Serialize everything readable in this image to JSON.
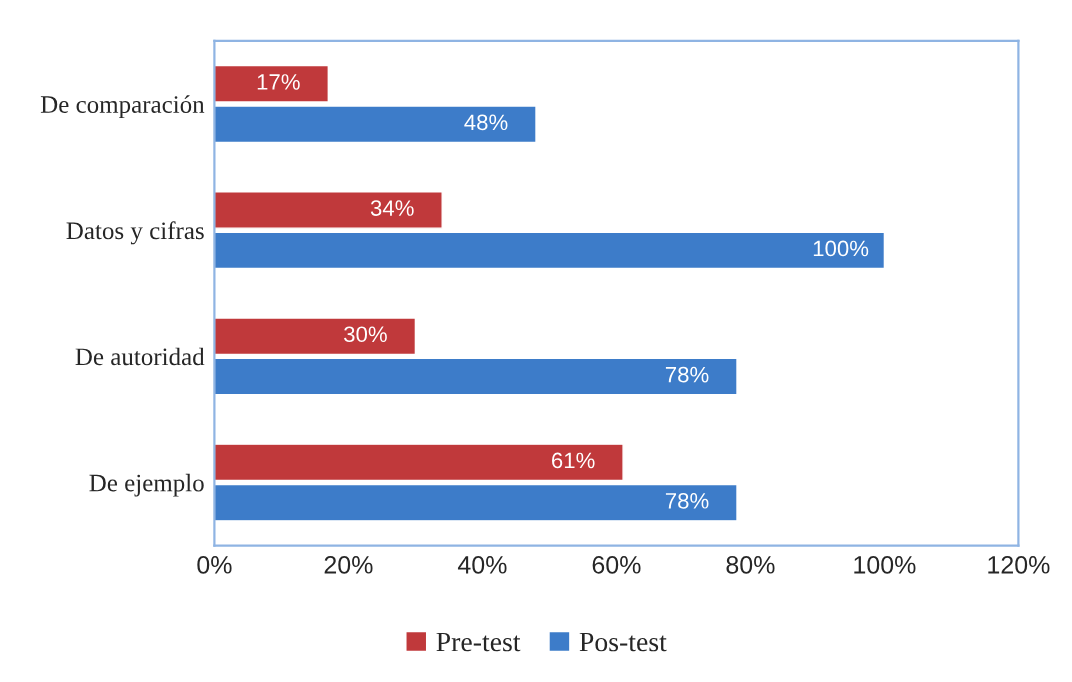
{
  "chart_data": {
    "type": "bar",
    "orientation": "horizontal",
    "categories": [
      "De comparación",
      "Datos y cifras",
      "De autoridad",
      "De ejemplo"
    ],
    "series": [
      {
        "name": "Pre-test",
        "color": "#c0393b",
        "values": [
          17,
          34,
          30,
          61
        ],
        "value_labels": [
          "17%",
          "34%",
          "30%",
          "61%"
        ]
      },
      {
        "name": "Pos-test",
        "color": "#3d7cc9",
        "values": [
          48,
          100,
          78,
          78
        ],
        "value_labels": [
          "48%",
          "100%",
          "78%",
          "78%"
        ]
      }
    ],
    "xlim": [
      0,
      120
    ],
    "xticks": [
      {
        "value": 0,
        "label": "0%"
      },
      {
        "value": 20,
        "label": "20%"
      },
      {
        "value": 40,
        "label": "40%"
      },
      {
        "value": 60,
        "label": "60%"
      },
      {
        "value": 80,
        "label": "80%"
      },
      {
        "value": 100,
        "label": "100%"
      },
      {
        "value": 120,
        "label": "120%"
      }
    ],
    "grid": false,
    "legend": "bottom"
  }
}
